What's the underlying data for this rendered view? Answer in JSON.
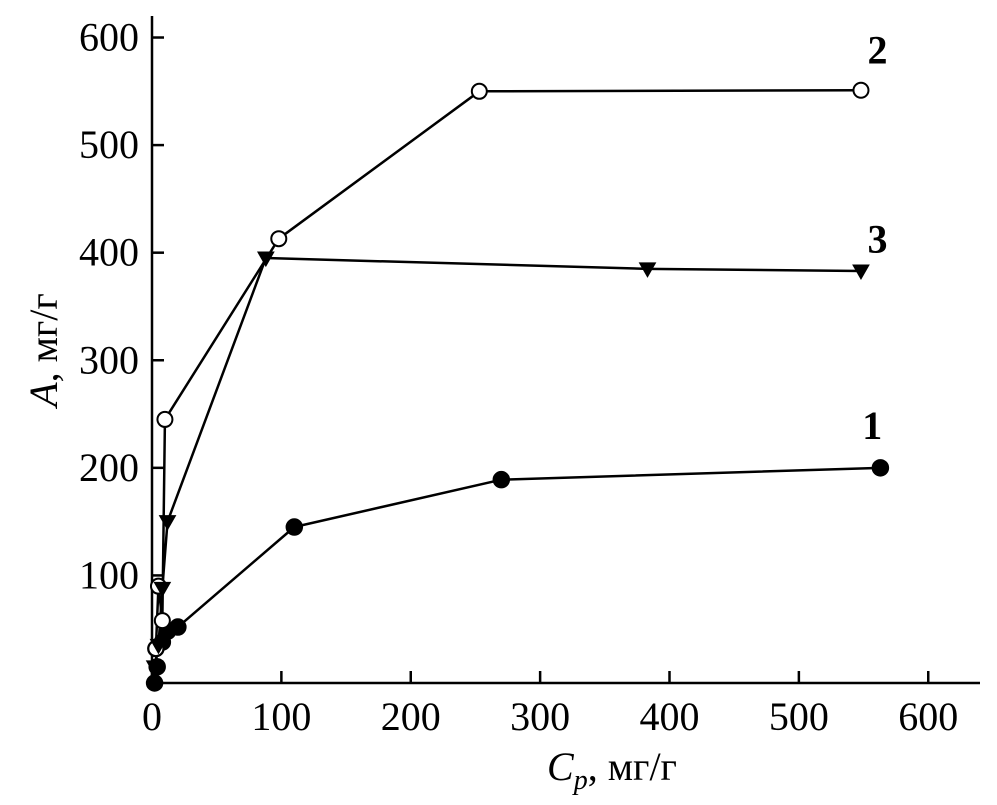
{
  "chart_data": {
    "type": "line",
    "title": "",
    "xlabel": "C",
    "xlabel_sub": "p",
    "xlabel_unit": ", мг/г",
    "ylabel": "A",
    "ylabel_unit": ", мг/г",
    "xlim": [
      0,
      640
    ],
    "ylim": [
      0,
      620
    ],
    "x_ticks": [
      0,
      100,
      200,
      300,
      400,
      500,
      600
    ],
    "y_ticks": [
      100,
      200,
      300,
      400,
      500,
      600
    ],
    "grid": false,
    "legend": "none",
    "series": [
      {
        "name": "1",
        "marker": "filled-circle",
        "points": [
          [
            2,
            0
          ],
          [
            4,
            15
          ],
          [
            3,
            32
          ],
          [
            8,
            38
          ],
          [
            12,
            48
          ],
          [
            20,
            52
          ],
          [
            110,
            145
          ],
          [
            270,
            189
          ],
          [
            563,
            200
          ]
        ]
      },
      {
        "name": "2",
        "marker": "open-circle",
        "points": [
          [
            3,
            32
          ],
          [
            5,
            90
          ],
          [
            8,
            58
          ],
          [
            10,
            245
          ],
          [
            98,
            413
          ],
          [
            253,
            550
          ],
          [
            548,
            551
          ]
        ]
      },
      {
        "name": "3",
        "marker": "filled-triangle-down",
        "points": [
          [
            2,
            15
          ],
          [
            5,
            35
          ],
          [
            8,
            88
          ],
          [
            12,
            150
          ],
          [
            88,
            395
          ],
          [
            383,
            385
          ],
          [
            548,
            383
          ]
        ]
      }
    ],
    "label_anchors": [
      {
        "text": "1",
        "x": 549,
        "y": 227
      },
      {
        "text": "2",
        "x": 553,
        "y": 576
      },
      {
        "text": "3",
        "x": 553,
        "y": 400
      }
    ]
  }
}
